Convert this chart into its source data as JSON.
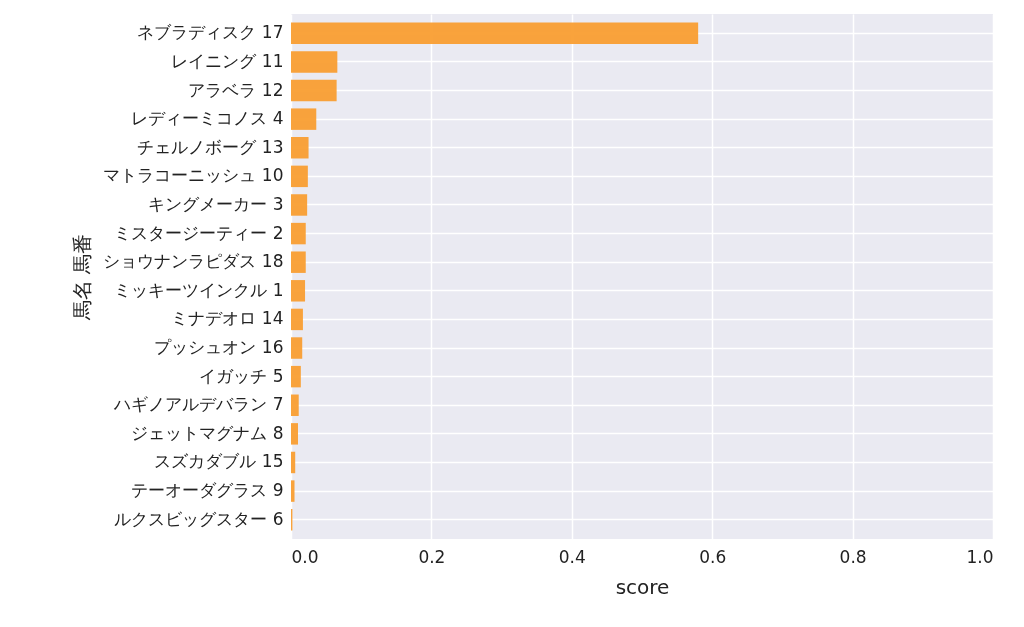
{
  "chart_data": {
    "type": "bar",
    "orientation": "horizontal",
    "xlabel": "score",
    "ylabel": "馬名 馬番",
    "categories": [
      "ネブラディスク 17",
      "レイニング 11",
      "アラベラ 12",
      "レディーミコノス 4",
      "チェルノボーグ 13",
      "マトラコーニッシュ 10",
      "キングメーカー 3",
      "ミスタージーティー 2",
      "ショウナンラピダス 18",
      "ミッキーツインクル 1",
      "ミナデオロ 14",
      "プッシュオン 16",
      "イガッチ 5",
      "ハギノアルデバラン 7",
      "ジェットマグナム 8",
      "スズカダブル 15",
      "テーオーダグラス 9",
      "ルクスビッグスター 6"
    ],
    "values": [
      0.58,
      0.066,
      0.065,
      0.036,
      0.025,
      0.024,
      0.023,
      0.021,
      0.021,
      0.02,
      0.017,
      0.016,
      0.014,
      0.011,
      0.01,
      0.006,
      0.005,
      0.002
    ],
    "color": "#f99e32",
    "xlim": [
      0,
      1
    ],
    "xticks": [
      {
        "value": 0,
        "label": "0.0"
      },
      0.2,
      0.4,
      0.6,
      0.8,
      {
        "value": 1,
        "label": "1.0"
      }
    ],
    "grid": true
  }
}
